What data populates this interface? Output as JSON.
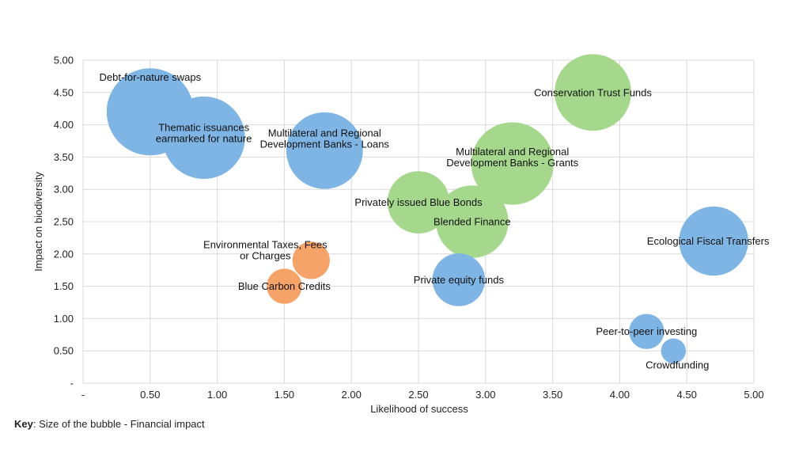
{
  "chart_data": {
    "type": "scatter",
    "subtype": "bubble",
    "xlabel": "Likelihood of success",
    "ylabel": "Impact on biodiversity",
    "xlim": [
      0,
      5
    ],
    "ylim": [
      0,
      5
    ],
    "x_ticks": [
      0,
      0.5,
      1.0,
      1.5,
      2.0,
      2.5,
      3.0,
      3.5,
      4.0,
      4.5,
      5.0
    ],
    "x_tick_labels": [
      "-",
      "0.50",
      "1.00",
      "1.50",
      "2.00",
      "2.50",
      "3.00",
      "3.50",
      "4.00",
      "4.50",
      "5.00"
    ],
    "y_ticks": [
      0,
      0.5,
      1.0,
      1.5,
      2.0,
      2.5,
      3.0,
      3.5,
      4.0,
      4.5,
      5.0
    ],
    "y_tick_labels": [
      "-",
      "0.50",
      "1.00",
      "1.50",
      "2.00",
      "2.50",
      "3.00",
      "3.50",
      "4.00",
      "4.50",
      "5.00"
    ],
    "grid": true,
    "colors": {
      "blue": "#7fb5e4",
      "green": "#a5d88c",
      "orange": "#f6a36a"
    },
    "points": [
      {
        "name": "Debt-for-nature swaps",
        "lines": [
          "Debt-for-nature swaps"
        ],
        "x": 0.5,
        "y": 4.2,
        "size": 4.9,
        "color": "blue"
      },
      {
        "name": "Thematic issuances earmarked for nature",
        "lines": [
          "Thematic issuances",
          "earmarked for nature"
        ],
        "x": 0.9,
        "y": 3.8,
        "size": 4.4,
        "color": "blue"
      },
      {
        "name": "Multilateral and Regional Development Banks - Loans",
        "lines": [
          "Multilateral and Regional",
          "Development Banks - Loans"
        ],
        "x": 1.8,
        "y": 3.6,
        "size": 3.8,
        "color": "blue"
      },
      {
        "name": "Conservation Trust Funds",
        "lines": [
          "Conservation Trust Funds"
        ],
        "x": 3.8,
        "y": 4.5,
        "size": 3.8,
        "color": "green"
      },
      {
        "name": "Multilateral and Regional Development Banks - Grants",
        "lines": [
          "Multilateral and Regional",
          "Development Banks - Grants"
        ],
        "x": 3.2,
        "y": 3.4,
        "size": 4.4,
        "color": "green"
      },
      {
        "name": "Privately issued Blue Bonds",
        "lines": [
          "Privately issued Blue Bonds"
        ],
        "x": 2.5,
        "y": 2.8,
        "size": 2.5,
        "color": "green"
      },
      {
        "name": "Blended Finance",
        "lines": [
          "Blended Finance"
        ],
        "x": 2.9,
        "y": 2.5,
        "size": 3.4,
        "color": "green"
      },
      {
        "name": "Ecological Fiscal Transfers",
        "lines": [
          "Ecological Fiscal Transfers"
        ],
        "x": 4.7,
        "y": 2.2,
        "size": 3.1,
        "color": "blue"
      },
      {
        "name": "Private equity funds",
        "lines": [
          "Private equity funds"
        ],
        "x": 2.8,
        "y": 1.6,
        "size": 1.8,
        "color": "blue"
      },
      {
        "name": "Environmental Taxes, Fees or Charges",
        "lines": [
          "Environmental Taxes, Fees",
          "or Charges"
        ],
        "x": 1.7,
        "y": 1.9,
        "size": 0.9,
        "color": "orange"
      },
      {
        "name": "Blue Carbon Credits",
        "lines": [
          "Blue Carbon Credits"
        ],
        "x": 1.5,
        "y": 1.5,
        "size": 0.8,
        "color": "orange"
      },
      {
        "name": "Peer-to-peer investing",
        "lines": [
          "Peer-to-peer investing"
        ],
        "x": 4.2,
        "y": 0.8,
        "size": 0.8,
        "color": "blue"
      },
      {
        "name": "Crowdfunding",
        "lines": [
          "Crowdfunding"
        ],
        "x": 4.4,
        "y": 0.5,
        "size": 0.4,
        "color": "blue"
      }
    ]
  },
  "key": {
    "label": "Key",
    "text": ": Size of the bubble - Financial impact"
  }
}
